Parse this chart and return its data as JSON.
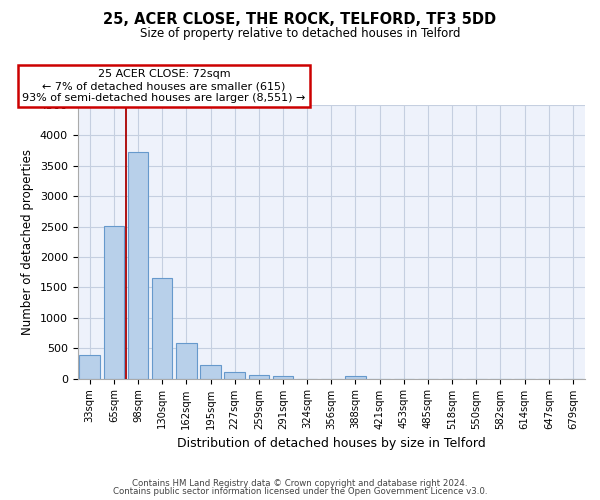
{
  "title": "25, ACER CLOSE, THE ROCK, TELFORD, TF3 5DD",
  "subtitle": "Size of property relative to detached houses in Telford",
  "xlabel": "Distribution of detached houses by size in Telford",
  "ylabel": "Number of detached properties",
  "categories": [
    "33sqm",
    "65sqm",
    "98sqm",
    "130sqm",
    "162sqm",
    "195sqm",
    "227sqm",
    "259sqm",
    "291sqm",
    "324sqm",
    "356sqm",
    "388sqm",
    "421sqm",
    "453sqm",
    "485sqm",
    "518sqm",
    "550sqm",
    "582sqm",
    "614sqm",
    "647sqm",
    "679sqm"
  ],
  "values": [
    390,
    2510,
    3720,
    1650,
    590,
    225,
    105,
    55,
    40,
    0,
    0,
    50,
    0,
    0,
    0,
    0,
    0,
    0,
    0,
    0,
    0
  ],
  "bar_color": "#b8d0ea",
  "bar_edge_color": "#6699cc",
  "annotation_title": "25 ACER CLOSE: 72sqm",
  "annotation_line1": "← 7% of detached houses are smaller (615)",
  "annotation_line2": "93% of semi-detached houses are larger (8,551) →",
  "red_line_color": "#aa0000",
  "box_edge_color": "#cc0000",
  "ylim": [
    0,
    4500
  ],
  "yticks": [
    0,
    500,
    1000,
    1500,
    2000,
    2500,
    3000,
    3500,
    4000,
    4500
  ],
  "bg_color": "#eef2fb",
  "grid_color": "#c5cfe0",
  "footer1": "Contains HM Land Registry data © Crown copyright and database right 2024.",
  "footer2": "Contains public sector information licensed under the Open Government Licence v3.0."
}
